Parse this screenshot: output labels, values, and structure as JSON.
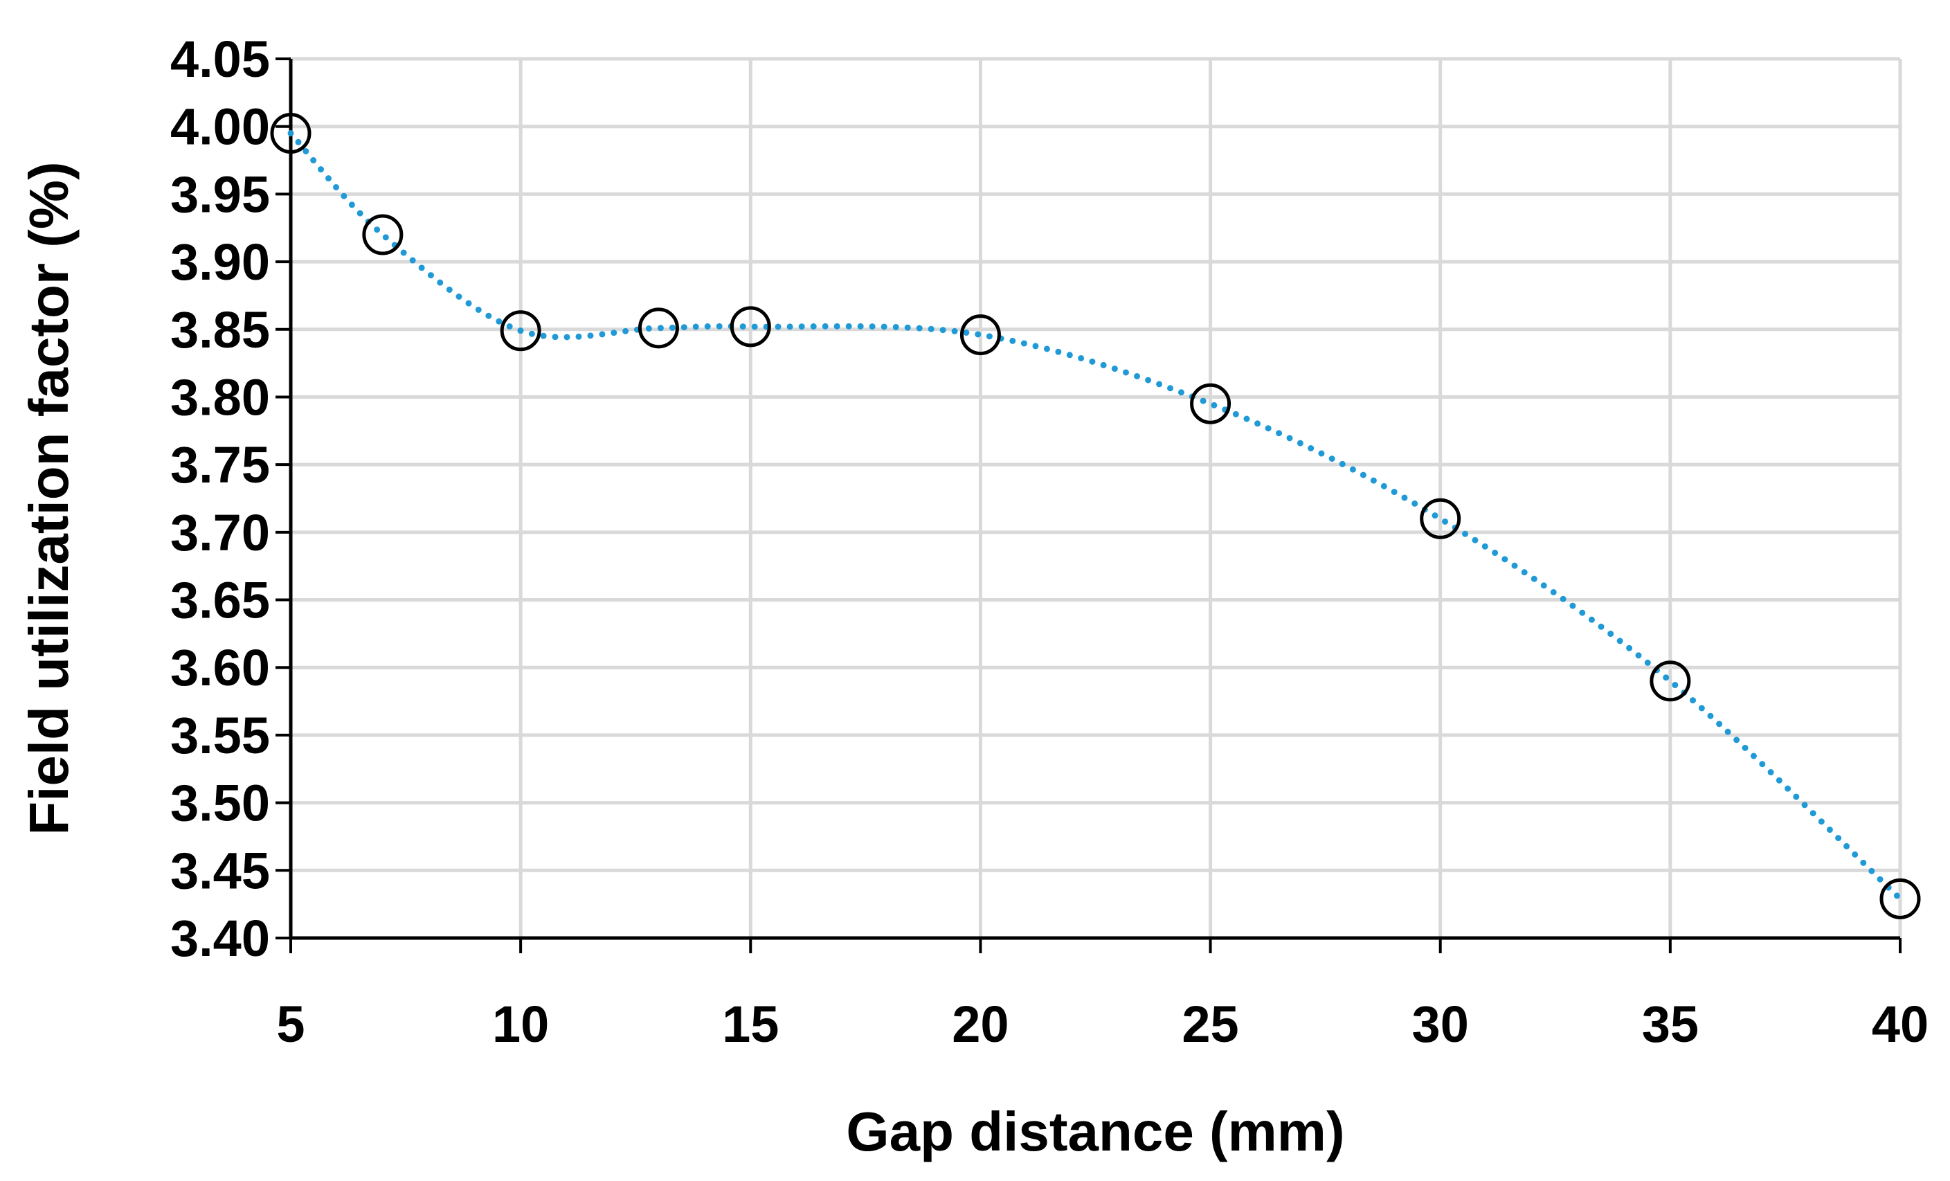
{
  "chart_data": {
    "type": "scatter",
    "title": "",
    "xlabel": "Gap distance (mm)",
    "ylabel": "Field utilization factor (%)",
    "xlim": [
      5,
      40
    ],
    "ylim": [
      3.4,
      4.05
    ],
    "xticks": [
      "5",
      "10",
      "15",
      "20",
      "25",
      "30",
      "35",
      "40"
    ],
    "yticks": [
      "3.40",
      "3.45",
      "3.50",
      "3.55",
      "3.60",
      "3.65",
      "3.70",
      "3.75",
      "3.80",
      "3.85",
      "3.90",
      "3.95",
      "4.00",
      "4.05"
    ],
    "grid": true,
    "trendline": "smooth dotted",
    "series": [
      {
        "x": [
          5,
          7,
          10,
          13,
          15,
          20,
          25,
          30,
          35,
          40
        ],
        "y": [
          3.995,
          3.92,
          3.849,
          3.851,
          3.852,
          3.846,
          3.795,
          3.71,
          3.59,
          3.429
        ]
      }
    ],
    "colors": {
      "marker_stroke": "#000000",
      "trendline": "#1f9ad6",
      "grid": "#d9d9d9",
      "axis": "#000000"
    }
  }
}
